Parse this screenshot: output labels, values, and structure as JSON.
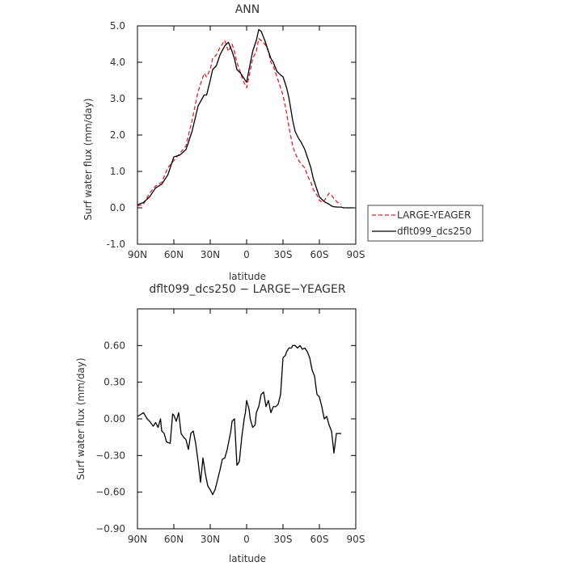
{
  "chart_data": [
    {
      "type": "line",
      "title": "ANN",
      "xlabel": "latitude",
      "ylabel": "Surf water flux (mm/day)",
      "xlim": [
        90,
        -90
      ],
      "ylim": [
        -1.0,
        5.0
      ],
      "xticks": [
        90,
        60,
        30,
        0,
        -30,
        -60,
        -90
      ],
      "xtick_labels": [
        "90N",
        "60N",
        "30N",
        "0",
        "30S",
        "60S",
        "90S"
      ],
      "yticks": [
        -1.0,
        0.0,
        1.0,
        2.0,
        3.0,
        4.0,
        5.0
      ],
      "ytick_labels": [
        "-1.0",
        "0.0",
        "1.0",
        "2.0",
        "3.0",
        "4.0",
        "5.0"
      ],
      "grid": false,
      "legend": "outside-right",
      "series": [
        {
          "name": "LARGE-YEAGER",
          "color": "#e02020",
          "dash": "dashed",
          "x": [
            90,
            85,
            80,
            75,
            70,
            65,
            60,
            55,
            50,
            45,
            40,
            35,
            33,
            30,
            28,
            25,
            22,
            18,
            15,
            12,
            10,
            8,
            5,
            3,
            0,
            -2,
            -5,
            -8,
            -10,
            -12,
            -15,
            -18,
            -20,
            -22,
            -25,
            -28,
            -30,
            -33,
            -35,
            -38,
            -40,
            -43,
            -45,
            -48,
            -50,
            -53,
            -55,
            -58,
            -60,
            -63,
            -65,
            -68,
            -70,
            -72,
            -75,
            -78
          ],
          "values": [
            0.05,
            0.1,
            0.4,
            0.6,
            0.7,
            1.1,
            1.3,
            1.5,
            1.7,
            2.4,
            3.2,
            3.7,
            3.6,
            3.8,
            4.1,
            4.2,
            4.4,
            4.6,
            4.3,
            4.5,
            4.3,
            4.0,
            3.7,
            3.5,
            3.3,
            3.6,
            4.1,
            4.3,
            4.65,
            4.6,
            4.5,
            4.3,
            4.0,
            3.9,
            3.6,
            3.3,
            3.1,
            2.6,
            2.2,
            1.7,
            1.5,
            1.3,
            1.2,
            1.1,
            0.9,
            0.7,
            0.5,
            0.35,
            0.2,
            0.15,
            0.25,
            0.4,
            0.35,
            0.25,
            0.15,
            0.1
          ]
        },
        {
          "name": "dflt099_dcs250",
          "color": "#000000",
          "dash": "solid",
          "x": [
            90,
            85,
            80,
            75,
            70,
            65,
            60,
            55,
            50,
            45,
            40,
            35,
            33,
            30,
            28,
            25,
            22,
            18,
            15,
            12,
            10,
            8,
            5,
            3,
            0,
            -2,
            -5,
            -8,
            -10,
            -12,
            -15,
            -18,
            -20,
            -22,
            -25,
            -28,
            -30,
            -33,
            -35,
            -38,
            -40,
            -43,
            -45,
            -48,
            -50,
            -53,
            -55,
            -58,
            -60,
            -63,
            -65,
            -68,
            -70,
            -72,
            -75,
            -78,
            -80,
            -83,
            -85,
            -88
          ],
          "values": [
            0.08,
            0.15,
            0.3,
            0.55,
            0.65,
            0.9,
            1.4,
            1.45,
            1.6,
            2.1,
            2.8,
            3.1,
            3.1,
            3.5,
            3.8,
            3.9,
            4.2,
            4.45,
            4.55,
            4.3,
            4.1,
            3.8,
            3.7,
            3.6,
            3.45,
            3.8,
            4.3,
            4.6,
            4.9,
            4.85,
            4.6,
            4.3,
            4.1,
            4.0,
            3.75,
            3.65,
            3.6,
            3.3,
            3.0,
            2.4,
            2.1,
            1.9,
            1.8,
            1.6,
            1.4,
            1.1,
            0.8,
            0.5,
            0.3,
            0.2,
            0.15,
            0.1,
            0.05,
            0.03,
            0.02,
            0.02,
            0.0,
            0.0,
            0.0,
            0.0
          ]
        }
      ]
    },
    {
      "type": "line",
      "title": "dflt099_dcs250 − LARGE−YEAGER",
      "xlabel": "latitude",
      "ylabel": "Surf water flux (mm/day)",
      "xlim": [
        90,
        -90
      ],
      "ylim": [
        -0.9,
        0.9
      ],
      "xticks": [
        90,
        60,
        30,
        0,
        -30,
        -60,
        -90
      ],
      "xtick_labels": [
        "90N",
        "60N",
        "30N",
        "0",
        "30S",
        "60S",
        "90S"
      ],
      "yticks": [
        -0.9,
        -0.6,
        -0.3,
        0.0,
        0.3,
        0.6
      ],
      "ytick_labels": [
        "−0.90",
        "−0.60",
        "−0.30",
        "0.00",
        "0.30",
        "0.60"
      ],
      "grid": false,
      "series": [
        {
          "name": "",
          "color": "#000000",
          "dash": "solid",
          "x": [
            90,
            85,
            82,
            80,
            77,
            75,
            73,
            71,
            70,
            68,
            66,
            63,
            61,
            60,
            58,
            56,
            54,
            52,
            50,
            48,
            46,
            44,
            42,
            40,
            38,
            37,
            36,
            34,
            32,
            30,
            28,
            26,
            24,
            22,
            20,
            18,
            16,
            15,
            14,
            13,
            12,
            10,
            8,
            6,
            5,
            4,
            2,
            1,
            0,
            -2,
            -3,
            -5,
            -7,
            -8,
            -10,
            -12,
            -14,
            -16,
            -18,
            -20,
            -22,
            -24,
            -26,
            -28,
            -30,
            -32,
            -33,
            -35,
            -37,
            -38,
            -40,
            -42,
            -44,
            -46,
            -48,
            -50,
            -52,
            -54,
            -56,
            -58,
            -60,
            -62,
            -64,
            -66,
            -68,
            -70,
            -72,
            -74,
            -76,
            -78
          ],
          "values": [
            0.02,
            0.05,
            0.0,
            -0.02,
            -0.06,
            -0.03,
            -0.07,
            0.0,
            -0.1,
            -0.12,
            -0.19,
            -0.2,
            0.04,
            0.03,
            -0.02,
            0.05,
            -0.12,
            -0.15,
            -0.17,
            -0.25,
            -0.12,
            -0.1,
            -0.2,
            -0.35,
            -0.52,
            -0.42,
            -0.32,
            -0.45,
            -0.55,
            -0.58,
            -0.62,
            -0.58,
            -0.5,
            -0.42,
            -0.33,
            -0.32,
            -0.25,
            -0.2,
            -0.15,
            -0.1,
            -0.02,
            0.0,
            -0.38,
            -0.35,
            -0.25,
            -0.15,
            0.0,
            0.05,
            0.15,
            0.08,
            0.0,
            -0.07,
            -0.05,
            0.05,
            0.1,
            0.2,
            0.22,
            0.1,
            0.15,
            0.05,
            0.1,
            0.1,
            0.12,
            0.2,
            0.5,
            0.52,
            0.55,
            0.58,
            0.58,
            0.6,
            0.6,
            0.58,
            0.6,
            0.57,
            0.58,
            0.55,
            0.5,
            0.4,
            0.35,
            0.2,
            0.18,
            0.1,
            0.0,
            0.02,
            -0.05,
            -0.1,
            -0.28,
            -0.12,
            -0.12,
            -0.12
          ]
        }
      ]
    }
  ]
}
